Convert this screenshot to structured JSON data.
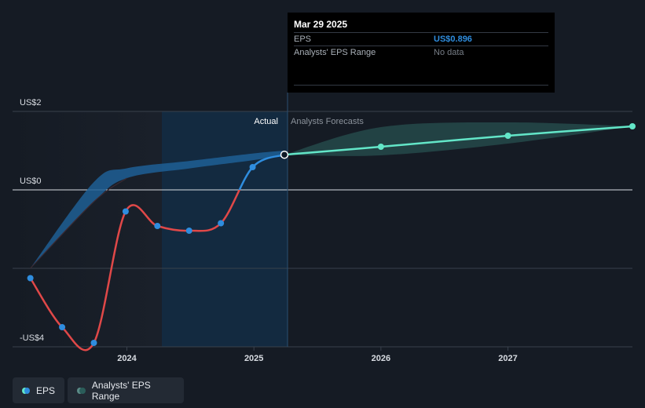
{
  "chart_data": {
    "type": "line",
    "y_axis": {
      "ticks": [
        {
          "label": "US$2",
          "value": 2
        },
        {
          "label": "US$0",
          "value": 0
        },
        {
          "label": "-US$4",
          "value": -4
        }
      ],
      "range": [
        -4,
        2
      ]
    },
    "x_axis": {
      "ticks": [
        {
          "label": "2024",
          "value": 2024.0
        },
        {
          "label": "2025",
          "value": 2025.0
        },
        {
          "label": "2026",
          "value": 2026.0
        },
        {
          "label": "2027",
          "value": 2027.0
        }
      ],
      "range": [
        2023.1,
        2027.98
      ]
    },
    "region_labels": {
      "actual": "Actual",
      "forecast": "Analysts Forecasts"
    },
    "actual_eps": {
      "x": [
        2023.24,
        2023.49,
        2023.74,
        2023.99,
        2024.24,
        2024.49,
        2024.74,
        2024.99,
        2025.24
      ],
      "y": [
        -2.25,
        -3.5,
        -3.9,
        -0.55,
        -0.92,
        -1.04,
        -0.85,
        0.58,
        0.896
      ]
    },
    "forecast_eps": {
      "x": [
        2025.24,
        2026.0,
        2027.0,
        2027.98
      ],
      "y": [
        0.896,
        1.1,
        1.38,
        1.62
      ]
    },
    "forecast_range": {
      "x": [
        2025.24,
        2026.0,
        2027.0,
        2027.98
      ],
      "low": [
        0.896,
        0.88,
        1.18,
        1.62
      ],
      "high": [
        0.896,
        1.6,
        1.72,
        1.62
      ]
    },
    "past_range": {
      "x": [
        2023.24,
        2023.74,
        2024.0,
        2024.5,
        2025.0,
        2025.24
      ],
      "low": [
        -2.0,
        -0.3,
        0.3,
        0.55,
        0.76,
        0.896
      ],
      "high": [
        -2.0,
        0.2,
        0.55,
        0.74,
        0.93,
        1.0
      ]
    },
    "colors": {
      "eps_negative": "#e04848",
      "eps_positive": "#2f8dde",
      "forecast": "#63e6c8",
      "range_band": "#1f5f95",
      "forecast_band": "#2b5d5a"
    }
  },
  "tooltip": {
    "date": "Mar 29 2025",
    "eps_label": "EPS",
    "eps_value": "US$0.896",
    "range_label": "Analysts' EPS Range",
    "range_value": "No data"
  },
  "legend": [
    {
      "label": "EPS",
      "color": "#2f8dde",
      "accent": "#63e6c8"
    },
    {
      "label": "Analysts' EPS Range",
      "color": "#2b5d5a",
      "accent": "#5a8a86"
    }
  ]
}
